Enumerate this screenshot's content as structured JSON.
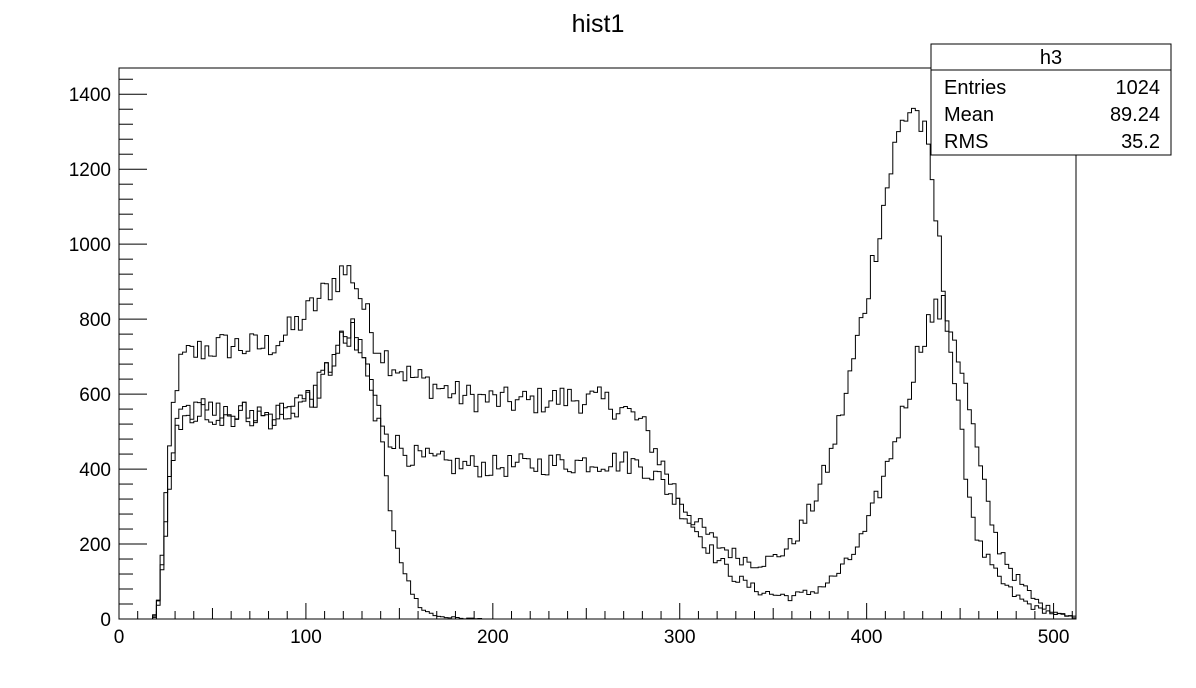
{
  "chart_data": {
    "type": "line",
    "style": "step-histogram",
    "title": "hist1",
    "xlabel": "",
    "ylabel": "",
    "xlim": [
      0,
      512
    ],
    "ylim": [
      0,
      1470
    ],
    "grid": false,
    "x_ticks": [
      0,
      100,
      200,
      300,
      400,
      500
    ],
    "y_ticks": [
      0,
      200,
      400,
      600,
      800,
      1000,
      1200,
      1400
    ],
    "x_tick_labels": [
      "0",
      "100",
      "200",
      "300",
      "400",
      "500"
    ],
    "y_tick_labels": [
      "0",
      "200",
      "400",
      "600",
      "800",
      "1000",
      "1200",
      "1400"
    ],
    "stats_box": {
      "name": "h3",
      "placement": "top-right",
      "rows": [
        {
          "label": "Entries",
          "value": "1024"
        },
        {
          "label": "Mean",
          "value": "89.24"
        },
        {
          "label": "RMS",
          "value": "35.2"
        }
      ]
    },
    "line_color": "#000000",
    "series": [
      {
        "x": [
          0,
          18,
          20,
          22,
          24,
          26,
          28,
          30,
          32,
          34,
          36,
          40,
          45,
          50,
          60,
          70,
          80,
          90,
          100,
          105,
          110,
          115,
          120,
          125,
          130,
          135,
          140,
          145,
          150,
          155,
          160,
          170,
          180,
          190,
          200,
          210,
          220,
          230,
          240,
          250,
          260,
          270,
          280,
          290,
          300,
          310,
          320,
          330,
          340,
          350,
          360,
          370,
          380,
          390,
          400,
          405,
          410,
          415,
          420,
          425,
          430,
          435,
          440,
          445,
          450,
          455,
          460,
          470,
          480,
          490,
          500,
          510
        ],
        "y": [
          0,
          0,
          20,
          90,
          240,
          380,
          520,
          610,
          660,
          690,
          700,
          710,
          720,
          725,
          730,
          725,
          730,
          760,
          810,
          840,
          870,
          900,
          930,
          920,
          850,
          770,
          720,
          690,
          670,
          650,
          640,
          620,
          600,
          590,
          585,
          580,
          580,
          585,
          590,
          585,
          580,
          560,
          520,
          420,
          320,
          250,
          200,
          170,
          150,
          160,
          200,
          290,
          420,
          620,
          860,
          1000,
          1130,
          1250,
          1340,
          1370,
          1310,
          1160,
          940,
          720,
          510,
          330,
          200,
          110,
          60,
          30,
          15,
          5
        ]
      },
      {
        "x": [
          0,
          18,
          20,
          22,
          24,
          26,
          28,
          30,
          32,
          34,
          36,
          40,
          50,
          60,
          70,
          80,
          90,
          100,
          105,
          110,
          115,
          120,
          125,
          130,
          135,
          140,
          145,
          150,
          155,
          160,
          170,
          180,
          190,
          200,
          210,
          220,
          230,
          240,
          250,
          260,
          270,
          280,
          290,
          300,
          310,
          320,
          330,
          340,
          350,
          360,
          370,
          380,
          390,
          400,
          410,
          420,
          425,
          430,
          435,
          440,
          445,
          450,
          455,
          460,
          465,
          470,
          480,
          490,
          500,
          510
        ],
        "y": [
          0,
          0,
          15,
          70,
          190,
          300,
          420,
          490,
          530,
          550,
          555,
          555,
          550,
          545,
          550,
          540,
          555,
          580,
          600,
          650,
          700,
          740,
          760,
          700,
          610,
          540,
          490,
          460,
          440,
          430,
          420,
          410,
          410,
          405,
          410,
          410,
          415,
          415,
          420,
          420,
          420,
          410,
          370,
          300,
          230,
          160,
          110,
          80,
          65,
          60,
          70,
          100,
          150,
          240,
          390,
          560,
          660,
          760,
          810,
          830,
          790,
          690,
          560,
          420,
          300,
          200,
          110,
          50,
          20,
          8
        ]
      },
      {
        "x": [
          0,
          18,
          20,
          22,
          24,
          26,
          28,
          30,
          32,
          34,
          36,
          40,
          50,
          60,
          70,
          80,
          90,
          100,
          105,
          110,
          115,
          120,
          125,
          130,
          135,
          140,
          142,
          145,
          150,
          155,
          160,
          165,
          170,
          180,
          190,
          200,
          210,
          512
        ],
        "y": [
          0,
          0,
          15,
          70,
          190,
          300,
          420,
          490,
          530,
          550,
          555,
          555,
          550,
          545,
          550,
          540,
          555,
          580,
          600,
          650,
          700,
          740,
          760,
          700,
          620,
          480,
          400,
          300,
          180,
          90,
          40,
          18,
          8,
          3,
          1,
          0,
          0,
          0
        ]
      }
    ]
  }
}
